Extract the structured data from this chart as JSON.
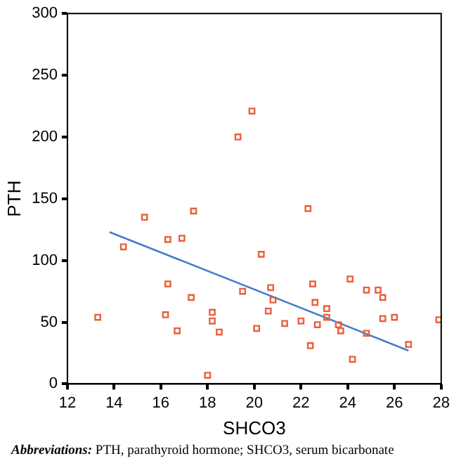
{
  "chart_data": {
    "type": "scatter",
    "xlabel": "SHCO3",
    "ylabel": "PTH",
    "xlim": [
      12,
      28
    ],
    "xticks": [
      12,
      14,
      16,
      18,
      20,
      22,
      24,
      26,
      28
    ],
    "ylim": [
      0,
      300
    ],
    "yticks": [
      0,
      50,
      100,
      150,
      200,
      250,
      300
    ],
    "grid": false,
    "legend": false,
    "marker": "square",
    "series": [
      {
        "color": "#e8603c",
        "x": [
          13.3,
          14.4,
          15.3,
          16.3,
          16.3,
          16.2,
          16.7,
          16.9,
          17.3,
          17.4,
          18.2,
          18.2,
          18.5,
          18.0,
          19.3,
          19.9,
          19.5,
          20.1,
          20.3,
          20.6,
          20.7,
          20.8,
          21.3,
          22.0,
          22.3,
          22.4,
          22.5,
          22.6,
          22.7,
          23.1,
          23.1,
          23.6,
          23.7,
          24.1,
          24.2,
          24.8,
          24.8,
          25.3,
          25.5,
          25.5,
          26.0,
          26.6,
          27.9
        ],
        "values": [
          54,
          111,
          135,
          117,
          81,
          56,
          43,
          118,
          70,
          140,
          58,
          51,
          42,
          7,
          200,
          221,
          75,
          45,
          105,
          59,
          78,
          68,
          49,
          51,
          142,
          31,
          81,
          66,
          48,
          61,
          54,
          48,
          43,
          85,
          20,
          76,
          41,
          76,
          70,
          53,
          54,
          32,
          52
        ]
      },
      {
        "type": "line",
        "color": "#4a7cc9",
        "marker": "none",
        "x": [
          13.8,
          26.6
        ],
        "values": [
          123,
          27
        ]
      }
    ],
    "annotations": [
      "Abbreviations: PTH, parathyroid hormone; SHCO3, serum bicarbonate"
    ]
  }
}
